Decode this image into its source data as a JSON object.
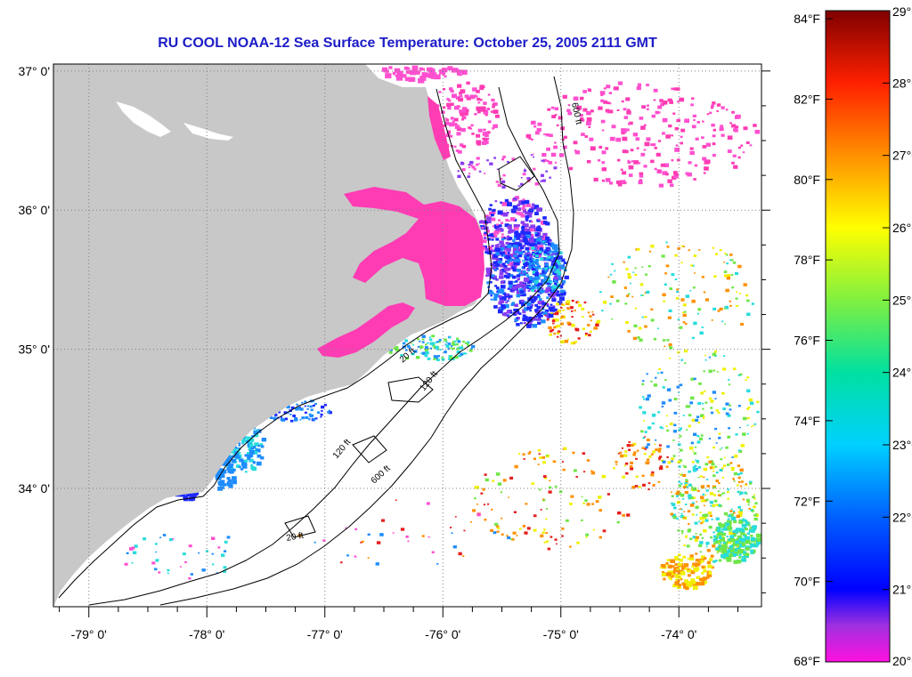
{
  "title": "RU COOL  NOAA-12  Sea Surface Temperature:  October 25, 2005 2111 GMT",
  "map": {
    "lon_range": [
      -79.3,
      -73.3
    ],
    "lat_range": [
      33.15,
      37.05
    ],
    "lat_ticks": [
      {
        "value": 37,
        "label": "37° 0'"
      },
      {
        "value": 36,
        "label": "36° 0'"
      },
      {
        "value": 35,
        "label": "35° 0'"
      },
      {
        "value": 34,
        "label": "34° 0'"
      }
    ],
    "lon_ticks": [
      {
        "value": -79,
        "label": "-79° 0'"
      },
      {
        "value": -78,
        "label": "-78° 0'"
      },
      {
        "value": -77,
        "label": "-77° 0'"
      },
      {
        "value": -76,
        "label": "-76° 0'"
      },
      {
        "value": -75,
        "label": "-75° 0'"
      },
      {
        "value": -74,
        "label": "-74° 0'"
      }
    ],
    "land_color": "#c8c8c8",
    "contour_labels": [
      "20 ft",
      "120 ft",
      "600 ft",
      "20 ft",
      "120 ft",
      "600 ft"
    ]
  },
  "colorbar": {
    "min_c": 20,
    "max_c": 29,
    "celsius_labels": [
      "29°C",
      "28°C",
      "27°C",
      "26°C",
      "25°C",
      "24°C",
      "23°C",
      "22°C",
      "21°C",
      "20°C"
    ],
    "fahrenheit_labels": [
      "84°F",
      "82°F",
      "80°F",
      "78°F",
      "76°F",
      "74°F",
      "72°F",
      "70°F",
      "68°F"
    ],
    "fahrenheit_values": [
      84,
      82,
      80,
      78,
      76,
      74,
      72,
      70,
      68
    ],
    "stops": [
      {
        "c": 20.0,
        "color": "#ff10e0"
      },
      {
        "c": 20.5,
        "color": "#a030e0"
      },
      {
        "c": 21.0,
        "color": "#0000ff"
      },
      {
        "c": 22.0,
        "color": "#0060ff"
      },
      {
        "c": 23.0,
        "color": "#00d0ff"
      },
      {
        "c": 24.0,
        "color": "#00e0a0"
      },
      {
        "c": 25.0,
        "color": "#80f040"
      },
      {
        "c": 26.0,
        "color": "#ffff00"
      },
      {
        "c": 27.0,
        "color": "#ff9000"
      },
      {
        "c": 28.0,
        "color": "#ff2000"
      },
      {
        "c": 29.0,
        "color": "#800000"
      }
    ]
  },
  "colors": {
    "title": "#1c1cc8",
    "pink": "#ff3cb4",
    "magenta": "#ff50d0",
    "purple": "#8a3cf0",
    "blue": "#1e28ff",
    "sky": "#1e8cff",
    "cyan": "#28dcdc",
    "green": "#6ee646",
    "yellow": "#f0f000",
    "orange": "#ff9000",
    "red": "#e61e1e"
  }
}
